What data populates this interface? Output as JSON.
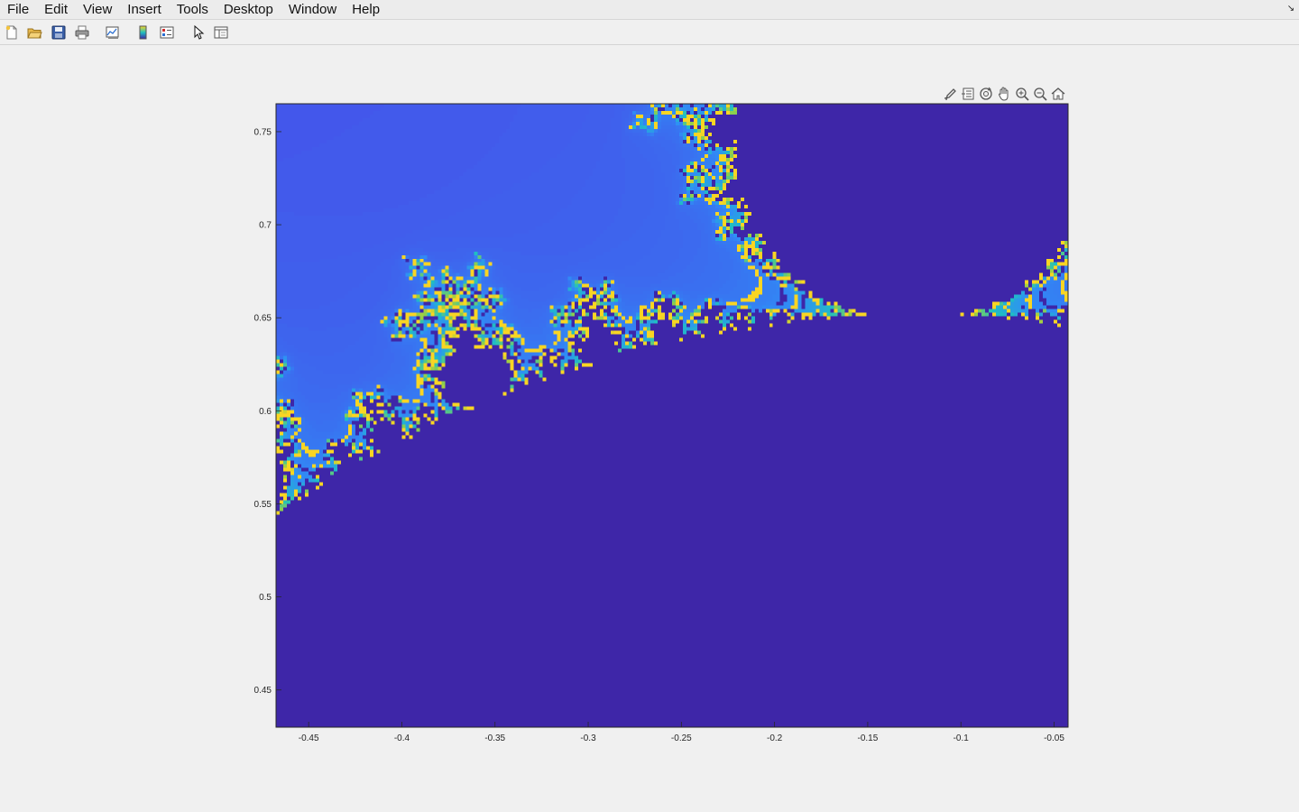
{
  "menubar": {
    "items": [
      {
        "label": "File"
      },
      {
        "label": "Edit"
      },
      {
        "label": "View"
      },
      {
        "label": "Insert"
      },
      {
        "label": "Tools"
      },
      {
        "label": "Desktop"
      },
      {
        "label": "Window"
      },
      {
        "label": "Help"
      }
    ],
    "collapse_icon": "arrow-collapse-icon"
  },
  "toolbar": {
    "buttons": [
      {
        "name": "new-figure-button",
        "icon": "new-file-icon"
      },
      {
        "name": "open-file-button",
        "icon": "open-folder-icon"
      },
      {
        "name": "save-figure-button",
        "icon": "save-disk-icon"
      },
      {
        "name": "print-figure-button",
        "icon": "printer-icon"
      },
      {
        "name": "link-plot-button",
        "icon": "link-plot-icon"
      },
      {
        "name": "insert-colorbar-button",
        "icon": "colorbar-icon"
      },
      {
        "name": "insert-legend-button",
        "icon": "legend-icon"
      },
      {
        "name": "edit-plot-button",
        "icon": "cursor-arrow-icon"
      },
      {
        "name": "open-property-inspector-button",
        "icon": "property-inspector-icon"
      }
    ]
  },
  "axes_toolbar": {
    "buttons": [
      {
        "name": "brush-button",
        "icon": "brush-icon"
      },
      {
        "name": "data-tips-button",
        "icon": "datatip-icon"
      },
      {
        "name": "rotate-3d-button",
        "icon": "rotate-icon"
      },
      {
        "name": "pan-button",
        "icon": "hand-icon"
      },
      {
        "name": "zoom-in-button",
        "icon": "zoom-in-icon"
      },
      {
        "name": "zoom-out-button",
        "icon": "zoom-out-icon"
      },
      {
        "name": "restore-view-button",
        "icon": "home-icon"
      }
    ]
  },
  "chart_data": {
    "type": "heatmap",
    "title": "",
    "xlabel": "",
    "ylabel": "",
    "xlim": [
      -0.4675,
      -0.0425
    ],
    "ylim": [
      0.43,
      0.765
    ],
    "xticks": [
      -0.45,
      -0.4,
      -0.35,
      -0.3,
      -0.25,
      -0.2,
      -0.15,
      -0.1,
      -0.05
    ],
    "xtick_labels": [
      "-0.45",
      "-0.4",
      "-0.35",
      "-0.3",
      "-0.25",
      "-0.2",
      "-0.15",
      "-0.1",
      "-0.05"
    ],
    "yticks": [
      0.45,
      0.5,
      0.55,
      0.6,
      0.65,
      0.7,
      0.75
    ],
    "ytick_labels": [
      "0.45",
      "0.5",
      "0.55",
      "0.6",
      "0.65",
      "0.7",
      "0.75"
    ],
    "grid": false,
    "colormap": "parula",
    "colors": {
      "interior": "#3e26a8",
      "low_escape": "#4a44e6",
      "mid_escape": "#2f8ff6",
      "high_escape": "#1fc0c0",
      "max_escape": "#f9d523"
    }
  }
}
